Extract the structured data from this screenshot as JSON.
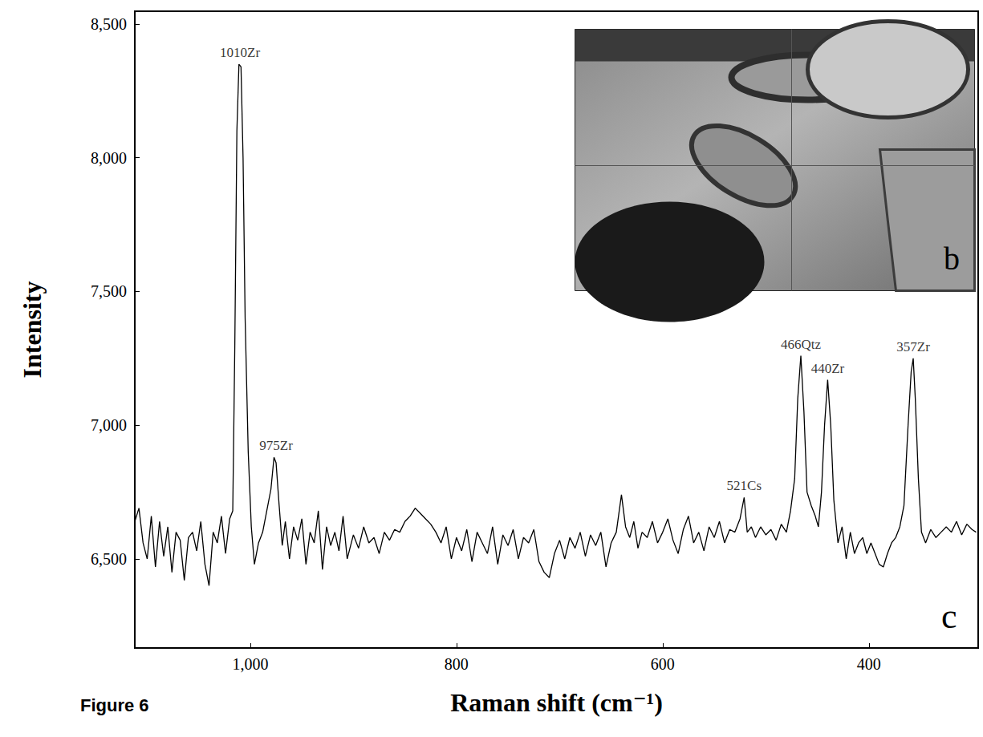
{
  "chart_data": {
    "type": "line",
    "caption": "Figure 6",
    "panel_label": "c",
    "inset": {
      "label": "b"
    },
    "xlabel": "Raman shift (cm⁻¹)",
    "ylabel": "Intensity",
    "xlim": [
      1112,
      294
    ],
    "xticks": [
      1000,
      800,
      600,
      400
    ],
    "ylim": [
      6167,
      8548
    ],
    "yticks": [
      6500,
      7000,
      7500,
      8000,
      8500
    ],
    "grid": false,
    "color": "#000000",
    "x": [
      1112,
      1108,
      1104,
      1100,
      1096,
      1092,
      1088,
      1084,
      1080,
      1076,
      1072,
      1068,
      1064,
      1060,
      1056,
      1052,
      1048,
      1044,
      1040,
      1036,
      1032,
      1028,
      1024,
      1020,
      1017,
      1015,
      1013,
      1011,
      1009,
      1007,
      1005,
      1002,
      999,
      996,
      992,
      988,
      984,
      980,
      977,
      975,
      972,
      969,
      966,
      962,
      958,
      954,
      950,
      946,
      942,
      938,
      934,
      930,
      926,
      922,
      918,
      914,
      910,
      906,
      900,
      895,
      890,
      885,
      880,
      875,
      870,
      865,
      860,
      855,
      850,
      845,
      840,
      835,
      830,
      825,
      820,
      815,
      810,
      805,
      800,
      795,
      790,
      785,
      780,
      775,
      770,
      765,
      760,
      755,
      750,
      745,
      740,
      735,
      730,
      725,
      720,
      715,
      710,
      705,
      700,
      695,
      690,
      685,
      680,
      675,
      670,
      665,
      660,
      655,
      650,
      645,
      640,
      636,
      632,
      628,
      624,
      620,
      615,
      610,
      605,
      600,
      595,
      590,
      585,
      580,
      575,
      570,
      565,
      560,
      555,
      550,
      545,
      540,
      535,
      530,
      525,
      521,
      518,
      514,
      510,
      505,
      500,
      495,
      490,
      485,
      480,
      476,
      472,
      469,
      466,
      463,
      460,
      456,
      452,
      449,
      446,
      443,
      440,
      437,
      434,
      430,
      426,
      422,
      418,
      414,
      410,
      406,
      402,
      398,
      394,
      390,
      386,
      382,
      378,
      374,
      370,
      366,
      362,
      359,
      357,
      355,
      352,
      349,
      345,
      340,
      335,
      330,
      325,
      320,
      315,
      310,
      305,
      300,
      296
    ],
    "values": [
      6640,
      6690,
      6560,
      6500,
      6660,
      6470,
      6640,
      6510,
      6620,
      6450,
      6600,
      6570,
      6420,
      6580,
      6600,
      6530,
      6640,
      6480,
      6400,
      6600,
      6560,
      6660,
      6520,
      6650,
      6680,
      7300,
      8100,
      8350,
      8340,
      8000,
      7400,
      6900,
      6620,
      6480,
      6560,
      6600,
      6680,
      6760,
      6880,
      6860,
      6700,
      6550,
      6640,
      6500,
      6620,
      6570,
      6650,
      6480,
      6600,
      6560,
      6680,
      6460,
      6620,
      6550,
      6600,
      6530,
      6660,
      6500,
      6590,
      6540,
      6620,
      6560,
      6580,
      6520,
      6600,
      6570,
      6610,
      6600,
      6640,
      6660,
      6690,
      6670,
      6650,
      6630,
      6600,
      6560,
      6620,
      6500,
      6580,
      6530,
      6610,
      6490,
      6600,
      6560,
      6520,
      6620,
      6480,
      6590,
      6550,
      6610,
      6500,
      6580,
      6560,
      6610,
      6490,
      6450,
      6430,
      6520,
      6570,
      6500,
      6580,
      6540,
      6600,
      6510,
      6590,
      6550,
      6600,
      6470,
      6560,
      6600,
      6740,
      6620,
      6580,
      6640,
      6540,
      6600,
      6580,
      6640,
      6560,
      6600,
      6650,
      6570,
      6520,
      6610,
      6660,
      6560,
      6600,
      6530,
      6620,
      6580,
      6640,
      6560,
      6610,
      6600,
      6650,
      6730,
      6600,
      6620,
      6580,
      6620,
      6590,
      6610,
      6570,
      6630,
      6600,
      6680,
      6800,
      7100,
      7260,
      7050,
      6750,
      6700,
      6660,
      6620,
      6750,
      7000,
      7170,
      7000,
      6720,
      6560,
      6620,
      6500,
      6600,
      6520,
      6560,
      6580,
      6520,
      6560,
      6520,
      6480,
      6470,
      6520,
      6560,
      6580,
      6620,
      6700,
      7000,
      7200,
      7250,
      7100,
      6800,
      6600,
      6560,
      6610,
      6580,
      6600,
      6620,
      6600,
      6640,
      6590,
      6630,
      6610,
      6600
    ],
    "annotations": [
      {
        "text": "1010Zr",
        "x": 1010,
        "y": 8350
      },
      {
        "text": "975Zr",
        "x": 975,
        "y": 6880
      },
      {
        "text": "521Cs",
        "x": 521,
        "y": 6730
      },
      {
        "text": "466Qtz",
        "x": 466,
        "y": 7260
      },
      {
        "text": "440Zr",
        "x": 440,
        "y": 7170
      },
      {
        "text": "357Zr",
        "x": 357,
        "y": 7250
      }
    ]
  }
}
